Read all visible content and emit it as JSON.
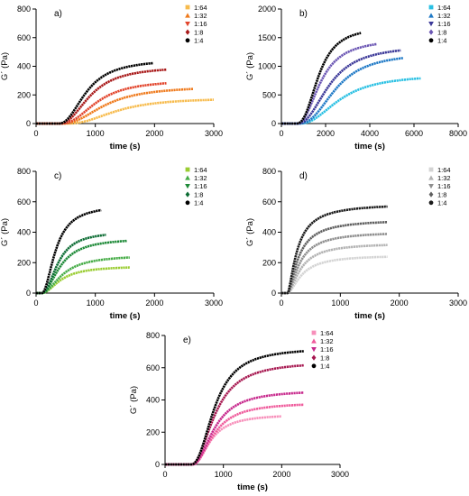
{
  "chart_data": [
    {
      "type": "line",
      "panel_label": "a)",
      "xlabel": "time (s)",
      "ylabel": "G´ (Pa)",
      "xlim": [
        0,
        3000
      ],
      "ylim": [
        0,
        800
      ],
      "xticks": [
        "0",
        "1000",
        "2000",
        "3000"
      ],
      "yticks": [
        "0",
        "200",
        "400",
        "600",
        "800"
      ],
      "legend_position": "top-right",
      "series": [
        {
          "name": "1:64",
          "color": "#f7bb4c",
          "marker": "square",
          "t0": 500,
          "end_time": 3000,
          "plateau": 180,
          "t_half": 1380,
          "t90": 2700
        },
        {
          "name": "1:32",
          "color": "#ef7a1c",
          "marker": "triangle-up",
          "t0": 430,
          "end_time": 2650,
          "plateau": 262,
          "t_half": 1180,
          "t90": 2400
        },
        {
          "name": "1:16",
          "color": "#e2442b",
          "marker": "triangle-down",
          "t0": 400,
          "end_time": 2200,
          "plateau": 305,
          "t_half": 1040,
          "t90": 2000
        },
        {
          "name": "1:8",
          "color": "#a81818",
          "marker": "diamond",
          "t0": 380,
          "end_time": 2200,
          "plateau": 400,
          "t_half": 930,
          "t90": 1800
        },
        {
          "name": "1:4",
          "color": "#000000",
          "marker": "circle",
          "t0": 380,
          "end_time": 1980,
          "plateau": 450,
          "t_half": 860,
          "t90": 1650
        }
      ]
    },
    {
      "type": "line",
      "panel_label": "b)",
      "xlabel": "time (s)",
      "ylabel": "G´ (Pa)",
      "xlim": [
        0,
        8000
      ],
      "ylim": [
        0,
        2000
      ],
      "xticks": [
        "0",
        "2000",
        "4000",
        "6000",
        "8000"
      ],
      "yticks": [
        "0",
        "500",
        "1000",
        "1500",
        "2000"
      ],
      "legend_position": "top-right",
      "series": [
        {
          "name": "1:64",
          "color": "#29c0e3",
          "marker": "square",
          "t0": 800,
          "end_time": 6300,
          "plateau": 860,
          "t_half": 2700,
          "t90": 5800
        },
        {
          "name": "1:32",
          "color": "#1e79c6",
          "marker": "triangle-up",
          "t0": 750,
          "end_time": 5500,
          "plateau": 1240,
          "t_half": 2500,
          "t90": 5000
        },
        {
          "name": "1:16",
          "color": "#3b3898",
          "marker": "triangle-down",
          "t0": 700,
          "end_time": 5400,
          "plateau": 1370,
          "t_half": 2200,
          "t90": 4600
        },
        {
          "name": "1:8",
          "color": "#6a55b3",
          "marker": "diamond",
          "t0": 700,
          "end_time": 4300,
          "plateau": 1480,
          "t_half": 1800,
          "t90": 3600
        },
        {
          "name": "1:4",
          "color": "#000000",
          "marker": "circle",
          "t0": 650,
          "end_time": 3600,
          "plateau": 1690,
          "t_half": 1700,
          "t90": 3100
        }
      ]
    },
    {
      "type": "line",
      "panel_label": "c)",
      "xlabel": "time (s)",
      "ylabel": "G´ (Pa)",
      "xlim": [
        0,
        3000
      ],
      "ylim": [
        0,
        800
      ],
      "xticks": [
        "0",
        "1000",
        "2000",
        "3000"
      ],
      "yticks": [
        "0",
        "200",
        "400",
        "600",
        "800"
      ],
      "legend_position": "top-right",
      "series": [
        {
          "name": "1:64",
          "color": "#9acd32",
          "marker": "square",
          "t0": 100,
          "end_time": 1580,
          "plateau": 178,
          "t_half": 430,
          "t90": 1150
        },
        {
          "name": "1:32",
          "color": "#45ac46",
          "marker": "triangle-up",
          "t0": 100,
          "end_time": 1580,
          "plateau": 250,
          "t_half": 460,
          "t90": 1250
        },
        {
          "name": "1:16",
          "color": "#1e8a38",
          "marker": "triangle-down",
          "t0": 100,
          "end_time": 1530,
          "plateau": 362,
          "t_half": 420,
          "t90": 1100
        },
        {
          "name": "1:8",
          "color": "#0a6b32",
          "marker": "diamond",
          "t0": 100,
          "end_time": 1180,
          "plateau": 405,
          "t_half": 380,
          "t90": 900
        },
        {
          "name": "1:4",
          "color": "#000000",
          "marker": "circle",
          "t0": 100,
          "end_time": 1100,
          "plateau": 580,
          "t_half": 340,
          "t90": 850
        }
      ]
    },
    {
      "type": "line",
      "panel_label": "d)",
      "xlabel": "time (s)",
      "ylabel": "G´ (Pa)",
      "xlim": [
        0,
        3000
      ],
      "ylim": [
        0,
        800
      ],
      "xticks": [
        "0",
        "1000",
        "2000",
        "3000"
      ],
      "yticks": [
        "0",
        "200",
        "400",
        "600",
        "800"
      ],
      "legend_position": "top-right",
      "series": [
        {
          "name": "1:64",
          "color": "#d3d3d3",
          "marker": "square",
          "t0": 110,
          "end_time": 1800,
          "plateau": 250,
          "t_half": 360,
          "t90": 1100
        },
        {
          "name": "1:32",
          "color": "#b2b2b2",
          "marker": "triangle-up",
          "t0": 110,
          "end_time": 1800,
          "plateau": 330,
          "t_half": 340,
          "t90": 1050
        },
        {
          "name": "1:16",
          "color": "#8e8e8e",
          "marker": "triangle-down",
          "t0": 110,
          "end_time": 1800,
          "plateau": 405,
          "t_half": 320,
          "t90": 1000
        },
        {
          "name": "1:8",
          "color": "#5f5f5f",
          "marker": "diamond",
          "t0": 110,
          "end_time": 1800,
          "plateau": 485,
          "t_half": 300,
          "t90": 950
        },
        {
          "name": "1:4",
          "color": "#1a1a1a",
          "marker": "circle",
          "t0": 110,
          "end_time": 1800,
          "plateau": 590,
          "t_half": 280,
          "t90": 900
        }
      ]
    },
    {
      "type": "line",
      "panel_label": "e)",
      "xlabel": "time (s)",
      "ylabel": "G´ (Pa)",
      "xlim": [
        0,
        3000
      ],
      "ylim": [
        0,
        800
      ],
      "xticks": [
        "0",
        "1000",
        "2000",
        "3000"
      ],
      "yticks": [
        "0",
        "200",
        "400",
        "600",
        "800"
      ],
      "legend_position": "top-right",
      "series": [
        {
          "name": "1:64",
          "color": "#f78fba",
          "marker": "square",
          "t0": 480,
          "end_time": 2000,
          "plateau": 312,
          "t_half": 800,
          "t90": 1450
        },
        {
          "name": "1:32",
          "color": "#ef5a9b",
          "marker": "triangle-up",
          "t0": 480,
          "end_time": 2380,
          "plateau": 385,
          "t_half": 850,
          "t90": 1600
        },
        {
          "name": "1:16",
          "color": "#c7288c",
          "marker": "triangle-down",
          "t0": 460,
          "end_time": 2380,
          "plateau": 462,
          "t_half": 860,
          "t90": 1600
        },
        {
          "name": "1:8",
          "color": "#a6164f",
          "marker": "diamond",
          "t0": 450,
          "end_time": 2380,
          "plateau": 640,
          "t_half": 870,
          "t90": 1650
        },
        {
          "name": "1:4",
          "color": "#000000",
          "marker": "circle",
          "t0": 450,
          "end_time": 2380,
          "plateau": 725,
          "t_half": 860,
          "t90": 1550
        }
      ]
    }
  ]
}
